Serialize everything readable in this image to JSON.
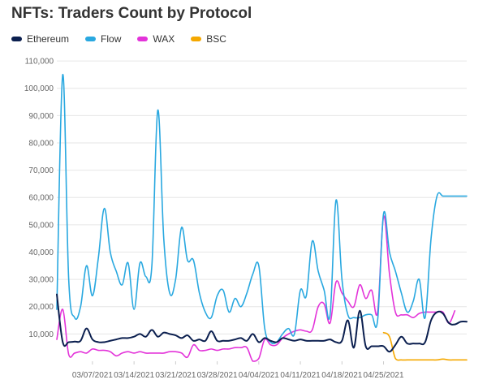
{
  "chart_data": {
    "type": "line",
    "title": "NFTs: Traders Count by Protocol",
    "xlabel": "",
    "ylabel": "",
    "x_ticks": [
      "03/07/2021",
      "03/14/2021",
      "03/21/2021",
      "03/28/2021",
      "04/04/2021",
      "04/11/2021",
      "04/18/2021",
      "04/25/2021"
    ],
    "y_ticks": [
      10000,
      20000,
      30000,
      40000,
      50000,
      60000,
      70000,
      80000,
      90000,
      100000,
      110000
    ],
    "y_tick_labels": [
      "10,000",
      "20,000",
      "30,000",
      "40,000",
      "50,000",
      "60,000",
      "70,000",
      "80,000",
      "90,000",
      "100,000",
      "110,000"
    ],
    "ylim": [
      0,
      113000
    ],
    "x_range_days": [
      0,
      69
    ],
    "grid": true,
    "legend_position": "top-left",
    "series": [
      {
        "name": "Ethereum",
        "color": "#0b1f4f",
        "x": [
          0,
          1,
          2,
          3,
          4,
          5,
          6,
          7,
          8,
          9,
          10,
          11,
          12,
          13,
          14,
          15,
          16,
          17,
          18,
          19,
          20,
          21,
          22,
          23,
          24,
          25,
          26,
          27,
          28,
          29,
          30,
          31,
          32,
          33,
          34,
          35,
          36,
          37,
          38,
          39,
          40,
          41,
          42,
          43,
          44,
          45,
          46,
          47,
          48,
          49,
          50,
          51,
          52,
          53,
          54,
          55,
          56,
          57,
          58,
          59,
          60,
          61,
          62,
          63,
          64,
          65,
          66,
          67,
          68,
          69
        ],
        "values": [
          24500,
          7000,
          7000,
          7200,
          7500,
          12000,
          8000,
          7000,
          7000,
          7500,
          8000,
          8500,
          8500,
          9000,
          10000,
          9000,
          11500,
          9000,
          10500,
          10000,
          9500,
          8500,
          9500,
          7500,
          8000,
          7500,
          11000,
          7500,
          7500,
          7500,
          8000,
          8500,
          7500,
          10000,
          7000,
          8500,
          7500,
          7000,
          8500,
          8000,
          7500,
          8000,
          7500,
          7500,
          7500,
          7500,
          8000,
          7000,
          7500,
          15000,
          5000,
          18500,
          5500,
          5500,
          5500,
          5500,
          3500,
          6000,
          9000,
          6500,
          6500,
          6500,
          7000,
          15000,
          18000,
          17500,
          14000,
          13500,
          14500,
          14500
        ]
      },
      {
        "name": "Flow",
        "color": "#29a8e0",
        "x": [
          0,
          1,
          2,
          3,
          4,
          5,
          6,
          7,
          8,
          9,
          10,
          11,
          12,
          13,
          14,
          15,
          16,
          17,
          18,
          19,
          20,
          21,
          22,
          23,
          24,
          25,
          26,
          27,
          28,
          29,
          30,
          31,
          32,
          33,
          34,
          35,
          36,
          37,
          38,
          39,
          40,
          41,
          42,
          43,
          44,
          45,
          46,
          47,
          48,
          49,
          50,
          51,
          52,
          53,
          54,
          55,
          56,
          57,
          58,
          59,
          60,
          61,
          62,
          63,
          64,
          65,
          66,
          67,
          68,
          69
        ],
        "values": [
          19000,
          105000,
          30000,
          16000,
          20000,
          35000,
          24000,
          38000,
          56000,
          40000,
          33000,
          28000,
          36000,
          19000,
          36000,
          31000,
          35000,
          92000,
          45000,
          25000,
          30000,
          49000,
          37000,
          37000,
          25000,
          18000,
          16000,
          24000,
          26000,
          18000,
          23000,
          20000,
          25000,
          32000,
          35000,
          12000,
          7000,
          7000,
          10000,
          12000,
          10000,
          26000,
          24000,
          44000,
          33000,
          26000,
          17000,
          59000,
          30000,
          17000,
          16000,
          16000,
          17000,
          17000,
          15000,
          54000,
          40000,
          33000,
          25000,
          18000,
          22000,
          30000,
          16000,
          45000,
          60500,
          60500,
          60500,
          60500,
          60500,
          60500
        ]
      },
      {
        "name": "WAX",
        "color": "#e333d9",
        "x": [
          0,
          1,
          2,
          3,
          4,
          5,
          6,
          7,
          8,
          9,
          10,
          11,
          12,
          13,
          14,
          15,
          16,
          17,
          18,
          19,
          20,
          21,
          22,
          23,
          24,
          25,
          26,
          27,
          28,
          29,
          30,
          31,
          32,
          33,
          34,
          35,
          36,
          37,
          38,
          39,
          40,
          41,
          42,
          43,
          44,
          45,
          46,
          47,
          48,
          49,
          50,
          51,
          52,
          53,
          54,
          55,
          56,
          57,
          58,
          59,
          60,
          61,
          62,
          63,
          64,
          65,
          66,
          67
        ],
        "values": [
          8000,
          19000,
          2500,
          3000,
          3500,
          3000,
          4500,
          4000,
          4000,
          3500,
          2000,
          3000,
          3500,
          3000,
          3500,
          3000,
          3000,
          3000,
          3000,
          3500,
          3500,
          3000,
          1500,
          6000,
          4000,
          4000,
          4500,
          4000,
          4500,
          4500,
          5000,
          5000,
          5000,
          0,
          1000,
          8000,
          6000,
          6000,
          8500,
          10000,
          11000,
          11500,
          11000,
          11500,
          20000,
          21000,
          14000,
          29000,
          25000,
          22000,
          20000,
          28000,
          23000,
          26000,
          18000,
          53000,
          32000,
          18000,
          17000,
          17000,
          16000,
          17500,
          18000,
          18000,
          18000,
          18000,
          14000,
          18500
        ]
      },
      {
        "name": "BSC",
        "color": "#f5a800",
        "x": [
          55,
          56,
          57,
          58,
          59,
          60,
          61,
          62,
          63,
          64,
          65,
          66,
          67,
          68,
          69
        ],
        "values": [
          10500,
          9000,
          1000,
          500,
          500,
          500,
          500,
          500,
          500,
          500,
          800,
          500,
          500,
          500,
          500
        ]
      }
    ]
  }
}
